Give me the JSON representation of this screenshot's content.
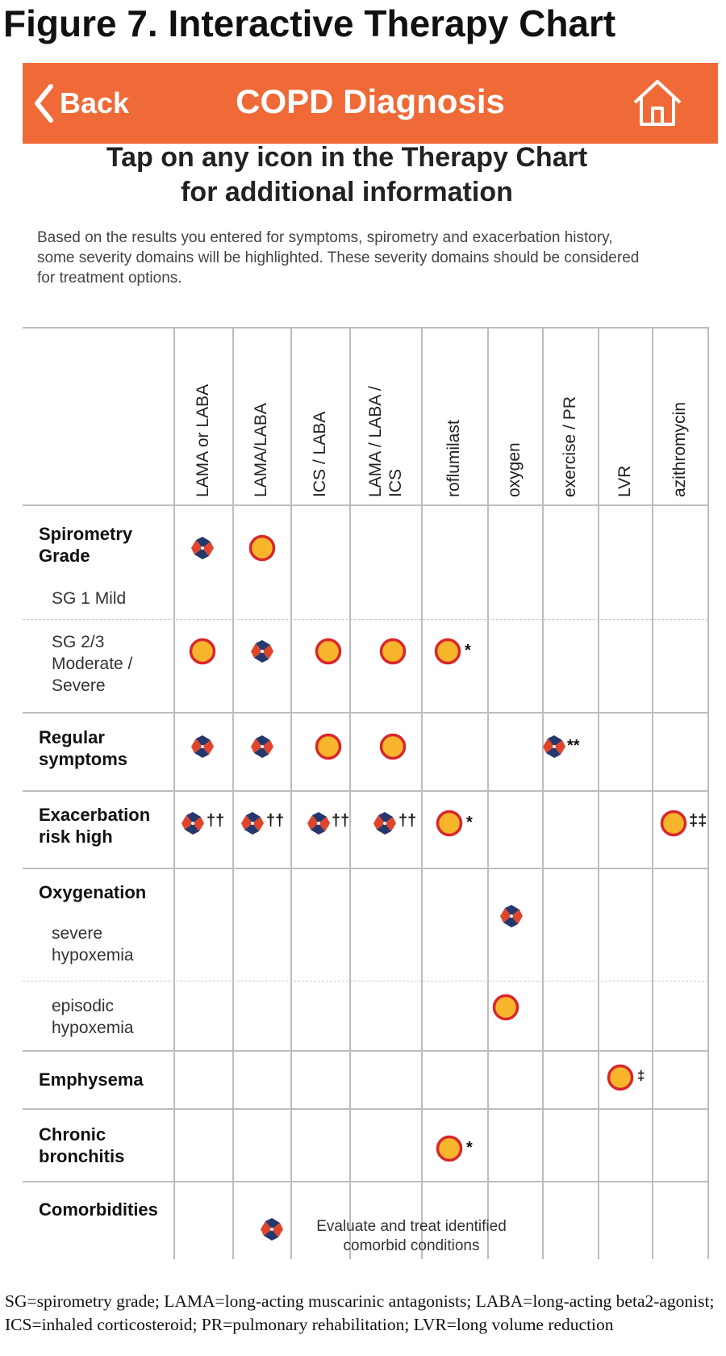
{
  "figure_title": "Figure 7. Interactive Therapy Chart",
  "header": {
    "back_label": "Back",
    "title": "COPD Diagnosis",
    "background": "#f06a37"
  },
  "instruction": {
    "line1": "Tap on any icon in the Therapy Chart",
    "line2": "for additional information"
  },
  "description": "Based on the results you entered for symptoms, spirometry and exacerbation history, some severity domains will be highlighted. These severity domains should be considered for treatment options.",
  "columns": [
    {
      "line1": "LAMA or LABA"
    },
    {
      "line1": "LAMA/LABA"
    },
    {
      "line1": "ICS / LABA"
    },
    {
      "line1": "LAMA / LABA /",
      "line2": "ICS"
    },
    {
      "line1": "roflumilast"
    },
    {
      "line1": "oxygen"
    },
    {
      "line1": "exercise / PR"
    },
    {
      "line1": "LVR"
    },
    {
      "line1": "azithromycin"
    }
  ],
  "rows": {
    "spirometry_grade": "Spirometry Grade",
    "sg1": "SG 1 Mild",
    "sg23": "SG 2/3 Moderate / Severe",
    "regular_symptoms": "Regular symptoms",
    "exacerbation": "Exacerbation risk high",
    "oxygenation": "Oxygenation",
    "severe_hypoxemia": "severe hypoxemia",
    "episodic_hypoxemia": "episodic hypoxemia",
    "emphysema": "Emphysema",
    "chronic_bronchitis": "Chronic bronchitis",
    "comorbidities": "Comorbidities"
  },
  "marks": {
    "dagger2": "††",
    "star": "*",
    "star2": "**",
    "ddagger": "‡",
    "ddagger2": "‡‡"
  },
  "comorbidity_note": "Evaluate and treat identified comorbid conditions",
  "icon_colors": {
    "circle_fill": "#f7b52c",
    "circle_ring": "#d9262c",
    "pinwheel_blue": "#26386b",
    "pinwheel_red": "#e0442b"
  },
  "footnote": "SG=spirometry grade; LAMA=long-acting muscarinic antagonists; LABA=long-acting beta2-agonist; ICS=inhaled corticosteroid; PR=pulmonary rehabilitation; LVR=long volume reduction"
}
